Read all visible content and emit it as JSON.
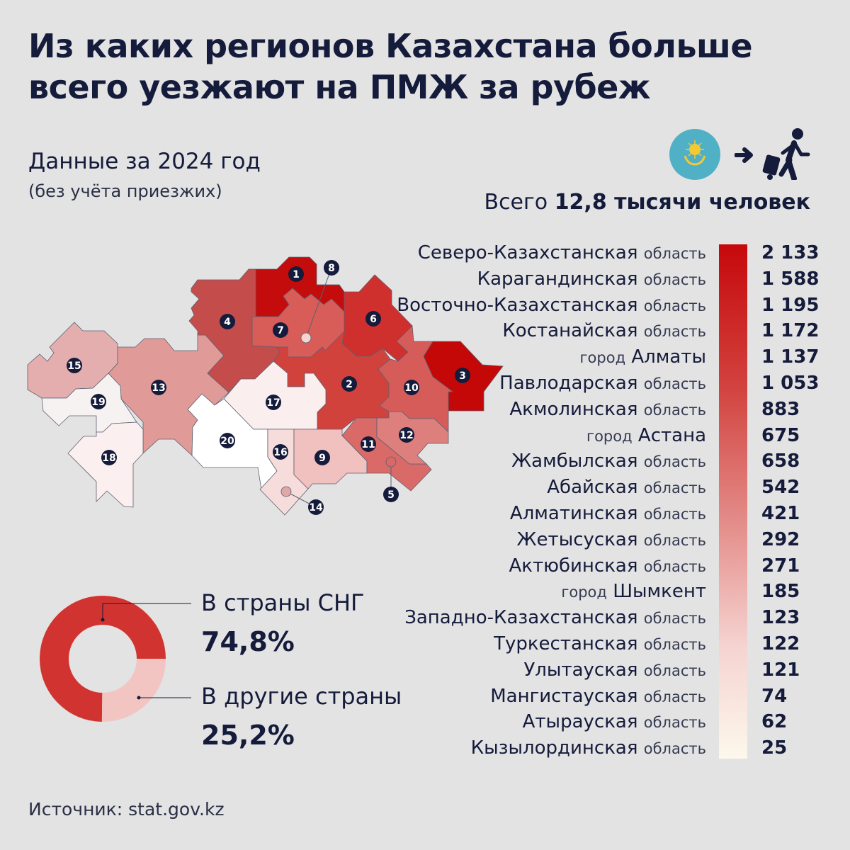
{
  "title": "Из каких регионов Казахстана больше всего уезжают на ПМЖ за рубеж",
  "subtitle": "Данные за 2024 год",
  "subnote": "(без учёта приезжих)",
  "total": {
    "prefix": "Всего",
    "value": "12,8 тысячи человек"
  },
  "icons": [
    "kazakhstan-flag-icon",
    "arrow-right-icon",
    "traveler-with-luggage-icon"
  ],
  "colors": {
    "text": "#151b3b",
    "max": "#c6080b",
    "min": "#fdf8ec",
    "cis": "#d13430",
    "other": "#f2c4c2"
  },
  "map": {
    "labels": [
      "1",
      "2",
      "3",
      "4",
      "5",
      "6",
      "7",
      "8",
      "9",
      "10",
      "11",
      "12",
      "13",
      "14",
      "15",
      "16",
      "17",
      "18",
      "19",
      "20"
    ]
  },
  "chart_data": [
    {
      "type": "table",
      "title": "",
      "rows": [
        {
          "name": "Северо-Казахстанская",
          "kind": "область",
          "value": "2 133"
        },
        {
          "name": "Карагандинская",
          "kind": "область",
          "value": "1 588"
        },
        {
          "name": "Восточно-Казахстанская",
          "kind": "область",
          "value": "1 195"
        },
        {
          "name": "Костанайская",
          "kind": "область",
          "value": "1 172"
        },
        {
          "name": "Алматы",
          "kind": "город",
          "value": "1 137"
        },
        {
          "name": "Павлодарская",
          "kind": "область",
          "value": "1 053"
        },
        {
          "name": "Акмолинская",
          "kind": "область",
          "value": "883"
        },
        {
          "name": "Астана",
          "kind": "город",
          "value": "675"
        },
        {
          "name": "Жамбылская",
          "kind": "область",
          "value": "658"
        },
        {
          "name": "Абайская",
          "kind": "область",
          "value": "542"
        },
        {
          "name": "Алматинская",
          "kind": "область",
          "value": "421"
        },
        {
          "name": "Жетысуская",
          "kind": "область",
          "value": "292"
        },
        {
          "name": "Актюбинская",
          "kind": "область",
          "value": "271"
        },
        {
          "name": "Шымкент",
          "kind": "город",
          "value": "185"
        },
        {
          "name": "Западно-Казахстанская",
          "kind": "область",
          "value": "123"
        },
        {
          "name": "Туркестанская",
          "kind": "область",
          "value": "122"
        },
        {
          "name": "Улытауская",
          "kind": "область",
          "value": "121"
        },
        {
          "name": "Мангистауская",
          "kind": "область",
          "value": "74"
        },
        {
          "name": "Атырауская",
          "kind": "область",
          "value": "62"
        },
        {
          "name": "Кызылординская",
          "kind": "область",
          "value": "25"
        }
      ]
    },
    {
      "type": "pie",
      "donut": true,
      "slices": [
        {
          "label": "В страны СНГ",
          "value": 74.8,
          "display": "74,8%"
        },
        {
          "label": "В другие страны",
          "value": 25.2,
          "display": "25,2%"
        }
      ]
    }
  ],
  "source": "Источник: stat.gov.kz"
}
